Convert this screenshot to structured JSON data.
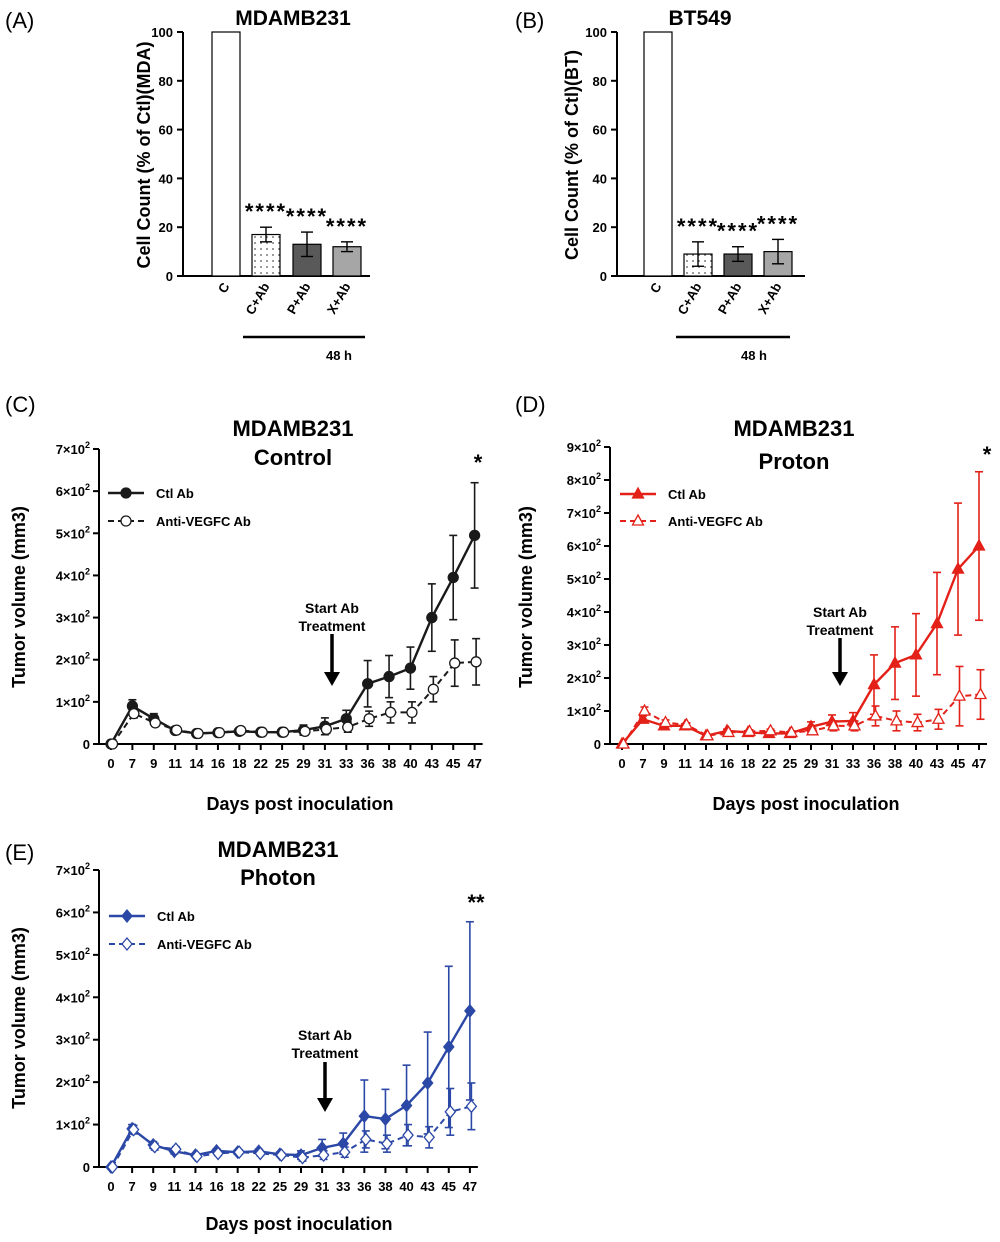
{
  "colors": {
    "black": "#1a1a1a",
    "red": "#e32119",
    "blue": "#2c48a6",
    "c_plusAb": "#ececec",
    "p_plusAb": "#595959",
    "x_plusAb": "#a6a6a6"
  },
  "chart_data": [
    {
      "id": "A",
      "type": "bar",
      "panel_label": "(A)",
      "title": "MDAMB231",
      "ylabel": "Cell Count (% of Ctl)(MDA)",
      "ylim": [
        0,
        100
      ],
      "yticks": [
        "0",
        "20",
        "40",
        "60",
        "80",
        "100"
      ],
      "categories": [
        "C",
        "C+Ab",
        "P+Ab",
        "X+Ab"
      ],
      "values": [
        100,
        17,
        13,
        12
      ],
      "errors": [
        0,
        3,
        5,
        2
      ],
      "significance": [
        "",
        "****",
        "****",
        "****"
      ],
      "group_label": "48 h"
    },
    {
      "id": "B",
      "type": "bar",
      "panel_label": "(B)",
      "title": "BT549",
      "ylabel": "Cell Count (% of Ctl)(BT)",
      "ylim": [
        0,
        100
      ],
      "yticks": [
        "0",
        "20",
        "40",
        "60",
        "80",
        "100"
      ],
      "categories": [
        "C",
        "C+Ab",
        "P+Ab",
        "X+Ab"
      ],
      "values": [
        100,
        9,
        9,
        10
      ],
      "errors": [
        0,
        5,
        3,
        5
      ],
      "significance": [
        "",
        "****",
        "****",
        "****"
      ],
      "group_label": "48 h"
    },
    {
      "id": "C",
      "type": "line",
      "panel_label": "(C)",
      "title_lines": [
        "MDAMB231",
        "Control"
      ],
      "xlabel": "Days post inoculation",
      "ylabel": "Tumor volume (mm3)",
      "x": [
        "0",
        "7",
        "9",
        "11",
        "14",
        "16",
        "18",
        "22",
        "25",
        "29",
        "31",
        "33",
        "36",
        "38",
        "40",
        "43",
        "45",
        "47"
      ],
      "ylim": [
        0,
        700
      ],
      "yticks": [
        [
          "0",
          ""
        ],
        [
          "1×10",
          "2"
        ],
        [
          "2×10",
          "2"
        ],
        [
          "3×10",
          "2"
        ],
        [
          "4×10",
          "2"
        ],
        [
          "5×10",
          "2"
        ],
        [
          "6×10",
          "2"
        ],
        [
          "7×10",
          "2"
        ]
      ],
      "series": [
        {
          "name": "Ctl Ab",
          "values": [
            0,
            90,
            60,
            32,
            25,
            27,
            30,
            28,
            28,
            33,
            42,
            60,
            143,
            160,
            180,
            300,
            395,
            495
          ],
          "errors": [
            0,
            15,
            12,
            5,
            4,
            4,
            5,
            4,
            5,
            12,
            20,
            20,
            55,
            50,
            50,
            80,
            100,
            125
          ]
        },
        {
          "name": "Anti-VEGFC Ab",
          "values": [
            0,
            72,
            50,
            33,
            25,
            27,
            32,
            28,
            28,
            30,
            35,
            40,
            60,
            75,
            75,
            130,
            192,
            195
          ],
          "errors": [
            0,
            10,
            8,
            4,
            4,
            4,
            4,
            4,
            4,
            8,
            10,
            12,
            18,
            25,
            25,
            30,
            55,
            55
          ]
        }
      ],
      "annotation": [
        "Start Ab",
        "Treatment"
      ],
      "significance": "*"
    },
    {
      "id": "D",
      "type": "line",
      "panel_label": "(D)",
      "title_lines": [
        "MDAMB231",
        "Proton"
      ],
      "xlabel": "Days post inoculation",
      "ylabel": "Tumor volume (mm3)",
      "x": [
        "0",
        "7",
        "9",
        "11",
        "14",
        "16",
        "18",
        "22",
        "25",
        "29",
        "31",
        "33",
        "36",
        "38",
        "40",
        "43",
        "45",
        "47"
      ],
      "ylim": [
        0,
        900
      ],
      "yticks": [
        [
          "0",
          ""
        ],
        [
          "1×10",
          "2"
        ],
        [
          "2×10",
          "2"
        ],
        [
          "3×10",
          "2"
        ],
        [
          "4×10",
          "2"
        ],
        [
          "5×10",
          "2"
        ],
        [
          "6×10",
          "2"
        ],
        [
          "7×10",
          "2"
        ],
        [
          "8×10",
          "2"
        ],
        [
          "9×10",
          "2"
        ]
      ],
      "series": [
        {
          "name": "Ctl Ab",
          "values": [
            0,
            75,
            55,
            55,
            25,
            40,
            35,
            32,
            32,
            52,
            68,
            70,
            180,
            245,
            270,
            365,
            530,
            600
          ],
          "errors": [
            0,
            10,
            8,
            6,
            4,
            5,
            5,
            5,
            5,
            15,
            20,
            25,
            90,
            110,
            125,
            155,
            200,
            225
          ]
        },
        {
          "name": "Anti-VEGFC Ab",
          "values": [
            0,
            100,
            65,
            58,
            25,
            35,
            38,
            40,
            35,
            40,
            55,
            55,
            85,
            70,
            65,
            75,
            145,
            150
          ],
          "errors": [
            0,
            12,
            8,
            6,
            4,
            5,
            5,
            5,
            5,
            8,
            15,
            15,
            30,
            30,
            25,
            30,
            90,
            75
          ]
        }
      ],
      "annotation": [
        "Start Ab",
        "Treatment"
      ],
      "significance": "*"
    },
    {
      "id": "E",
      "type": "line",
      "panel_label": "(E)",
      "title_lines": [
        "MDAMB231",
        "Photon"
      ],
      "xlabel": "Days post inoculation",
      "ylabel": "Tumor volume (mm3)",
      "x": [
        "0",
        "7",
        "9",
        "11",
        "14",
        "16",
        "18",
        "22",
        "25",
        "29",
        "31",
        "33",
        "36",
        "38",
        "40",
        "43",
        "45",
        "47"
      ],
      "ylim": [
        0,
        700
      ],
      "yticks": [
        [
          "0",
          ""
        ],
        [
          "1×10",
          "2"
        ],
        [
          "2×10",
          "2"
        ],
        [
          "3×10",
          "2"
        ],
        [
          "4×10",
          "2"
        ],
        [
          "5×10",
          "2"
        ],
        [
          "6×10",
          "2"
        ],
        [
          "7×10",
          "2"
        ]
      ],
      "series": [
        {
          "name": "Ctl Ab",
          "values": [
            0,
            90,
            52,
            37,
            28,
            38,
            35,
            37,
            30,
            28,
            45,
            55,
            120,
            113,
            145,
            198,
            283,
            368
          ],
          "errors": [
            0,
            10,
            8,
            6,
            4,
            5,
            5,
            5,
            5,
            10,
            20,
            25,
            85,
            70,
            95,
            120,
            190,
            210
          ]
        },
        {
          "name": "Anti-VEGFC Ab",
          "values": [
            0,
            88,
            48,
            42,
            25,
            32,
            35,
            32,
            28,
            22,
            28,
            35,
            65,
            55,
            75,
            70,
            130,
            143
          ],
          "errors": [
            0,
            10,
            8,
            6,
            4,
            5,
            5,
            5,
            5,
            8,
            10,
            12,
            20,
            20,
            25,
            25,
            55,
            55
          ]
        }
      ],
      "annotation": [
        "Start Ab",
        "Treatment"
      ],
      "significance": "**"
    }
  ]
}
